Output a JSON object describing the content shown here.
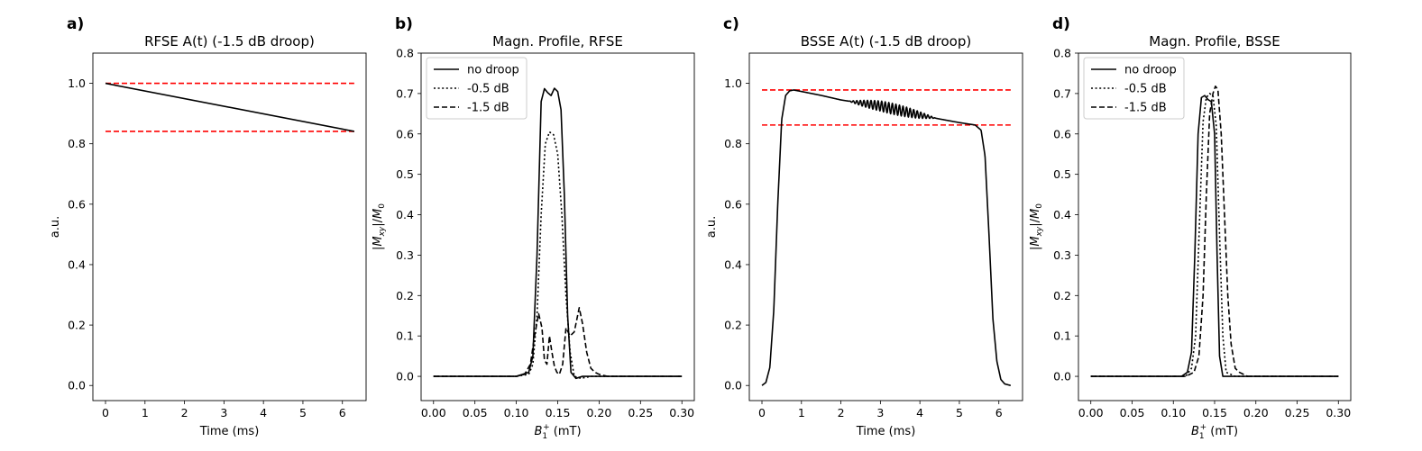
{
  "chart_data": [
    {
      "panel": "a)",
      "type": "line",
      "title": "RFSE A(t) (-1.5 dB droop)",
      "xlabel": "Time (ms)",
      "ylabel": "a.u.",
      "xlim": [
        -0.32,
        6.6
      ],
      "ylim": [
        -0.05,
        1.1
      ],
      "xticks": [
        0,
        1,
        2,
        3,
        4,
        5,
        6
      ],
      "yticks": [
        0.0,
        0.2,
        0.4,
        0.6,
        0.8,
        1.0
      ],
      "xtick_labels": [
        "0",
        "1",
        "2",
        "3",
        "4",
        "5",
        "6"
      ],
      "ytick_labels": [
        "0.0",
        "0.2",
        "0.4",
        "0.6",
        "0.8",
        "1.0"
      ],
      "series": [
        {
          "style": "solid",
          "color": "#000000",
          "x": [
            0,
            6.3
          ],
          "y": [
            1.0,
            0.841
          ]
        }
      ],
      "hlines": [
        {
          "y": 1.0,
          "x": [
            0,
            6.3
          ],
          "color": "#ff0000",
          "style": "dashed"
        },
        {
          "y": 0.841,
          "x": [
            0,
            6.3
          ],
          "color": "#ff0000",
          "style": "dashed"
        }
      ],
      "legend": null
    },
    {
      "panel": "b)",
      "type": "line",
      "title": "Magn. Profile, RFSE",
      "xlabel": "B1+ (mT)",
      "ylabel": "|Mxy|/M0",
      "xlim": [
        -0.015,
        0.315
      ],
      "ylim": [
        -0.06,
        0.8
      ],
      "xticks": [
        0.0,
        0.05,
        0.1,
        0.15,
        0.2,
        0.25,
        0.3
      ],
      "yticks": [
        0.0,
        0.1,
        0.2,
        0.3,
        0.4,
        0.5,
        0.6,
        0.7,
        0.8
      ],
      "xtick_labels": [
        "0.00",
        "0.05",
        "0.10",
        "0.15",
        "0.20",
        "0.25",
        "0.30"
      ],
      "ytick_labels": [
        "0.0",
        "0.1",
        "0.2",
        "0.3",
        "0.4",
        "0.5",
        "0.6",
        "0.7",
        "0.8"
      ],
      "series": [
        {
          "name": "no droop",
          "style": "solid",
          "x": [
            0.0,
            0.1,
            0.115,
            0.12,
            0.125,
            0.13,
            0.134,
            0.138,
            0.142,
            0.146,
            0.15,
            0.154,
            0.158,
            0.162,
            0.166,
            0.172,
            0.18,
            0.3
          ],
          "y": [
            0.0,
            0.0,
            0.01,
            0.05,
            0.3,
            0.68,
            0.712,
            0.702,
            0.695,
            0.713,
            0.705,
            0.66,
            0.45,
            0.15,
            0.01,
            -0.005,
            0.0,
            0.0
          ]
        },
        {
          "name": "-0.5 dB",
          "style": "dotted",
          "x": [
            0.0,
            0.1,
            0.115,
            0.12,
            0.125,
            0.13,
            0.135,
            0.14,
            0.145,
            0.15,
            0.155,
            0.16,
            0.165,
            0.17,
            0.178,
            0.19,
            0.3
          ],
          "y": [
            0.0,
            0.0,
            0.005,
            0.03,
            0.15,
            0.4,
            0.575,
            0.605,
            0.598,
            0.55,
            0.4,
            0.2,
            0.06,
            0.0,
            -0.005,
            0.0,
            0.0
          ]
        },
        {
          "name": "-1.5 dB",
          "style": "dashed",
          "x": [
            0.0,
            0.1,
            0.11,
            0.117,
            0.122,
            0.127,
            0.131,
            0.134,
            0.137,
            0.14,
            0.143,
            0.146,
            0.149,
            0.152,
            0.156,
            0.16,
            0.165,
            0.17,
            0.176,
            0.18,
            0.185,
            0.19,
            0.195,
            0.2,
            0.21,
            0.3
          ],
          "y": [
            0.0,
            0.0,
            0.005,
            0.03,
            0.1,
            0.155,
            0.12,
            0.04,
            0.03,
            0.1,
            0.06,
            0.025,
            0.01,
            0.005,
            0.03,
            0.12,
            0.1,
            0.11,
            0.17,
            0.13,
            0.06,
            0.02,
            0.01,
            0.005,
            0.0,
            0.0
          ]
        }
      ],
      "hlines": [],
      "legend": "upper-left"
    },
    {
      "panel": "c)",
      "type": "line",
      "title": "BSSE A(t) (-1.5 dB droop)",
      "xlabel": "Time (ms)",
      "ylabel": "a.u.",
      "xlim": [
        -0.32,
        6.6
      ],
      "ylim": [
        -0.05,
        1.1
      ],
      "xticks": [
        0,
        1,
        2,
        3,
        4,
        5,
        6
      ],
      "yticks": [
        0.0,
        0.2,
        0.4,
        0.6,
        0.8,
        1.0
      ],
      "xtick_labels": [
        "0",
        "1",
        "2",
        "3",
        "4",
        "5",
        "6"
      ],
      "ytick_labels": [
        "0.0",
        "0.2",
        "0.4",
        "0.6",
        "0.8",
        "1.0"
      ],
      "series": [
        {
          "style": "solid",
          "color": "#000000",
          "x": [
            0.0,
            0.1,
            0.2,
            0.3,
            0.4,
            0.5,
            0.6,
            0.7,
            0.8,
            1.0,
            1.5,
            2.0,
            2.5,
            3.0,
            3.5,
            4.0,
            4.5,
            5.0,
            5.4,
            5.55,
            5.65,
            5.75,
            5.85,
            5.95,
            6.05,
            6.15,
            6.3
          ],
          "y": [
            0.0,
            0.01,
            0.06,
            0.25,
            0.6,
            0.88,
            0.96,
            0.975,
            0.978,
            0.973,
            0.96,
            0.945,
            0.935,
            0.925,
            0.91,
            0.895,
            0.882,
            0.87,
            0.862,
            0.845,
            0.76,
            0.5,
            0.22,
            0.08,
            0.02,
            0.005,
            0.0
          ]
        }
      ],
      "oscillation": {
        "x_range": [
          2.2,
          4.4
        ],
        "amplitude": 0.018,
        "period": 0.09
      },
      "hlines": [
        {
          "y": 0.978,
          "x": [
            0,
            6.3
          ],
          "color": "#ff0000",
          "style": "dashed"
        },
        {
          "y": 0.862,
          "x": [
            0,
            6.3
          ],
          "color": "#ff0000",
          "style": "dashed"
        }
      ],
      "legend": null
    },
    {
      "panel": "d)",
      "type": "line",
      "title": "Magn. Profile, BSSE",
      "xlabel": "B1+ (mT)",
      "ylabel": "|Mxy|/M0",
      "xlim": [
        -0.015,
        0.315
      ],
      "ylim": [
        -0.06,
        0.8
      ],
      "xticks": [
        0.0,
        0.05,
        0.1,
        0.15,
        0.2,
        0.25,
        0.3
      ],
      "yticks": [
        0.0,
        0.1,
        0.2,
        0.3,
        0.4,
        0.5,
        0.6,
        0.7,
        0.8
      ],
      "xtick_labels": [
        "0.00",
        "0.05",
        "0.10",
        "0.15",
        "0.20",
        "0.25",
        "0.30"
      ],
      "ytick_labels": [
        "0.0",
        "0.1",
        "0.2",
        "0.3",
        "0.4",
        "0.5",
        "0.6",
        "0.7",
        "0.8"
      ],
      "series": [
        {
          "name": "no droop",
          "style": "solid",
          "x": [
            0.0,
            0.11,
            0.117,
            0.122,
            0.126,
            0.13,
            0.134,
            0.138,
            0.142,
            0.146,
            0.15,
            0.153,
            0.156,
            0.16,
            0.17,
            0.3
          ],
          "y": [
            0.0,
            0.0,
            0.01,
            0.06,
            0.3,
            0.6,
            0.69,
            0.695,
            0.685,
            0.68,
            0.6,
            0.3,
            0.05,
            0.0,
            0.0,
            0.0
          ]
        },
        {
          "name": "-0.5 dB",
          "style": "dotted",
          "x": [
            0.0,
            0.115,
            0.122,
            0.127,
            0.132,
            0.136,
            0.14,
            0.144,
            0.148,
            0.152,
            0.156,
            0.16,
            0.164,
            0.175,
            0.3
          ],
          "y": [
            0.0,
            0.0,
            0.02,
            0.1,
            0.4,
            0.63,
            0.69,
            0.7,
            0.695,
            0.62,
            0.35,
            0.1,
            0.01,
            0.0,
            0.0
          ]
        },
        {
          "name": "-1.5 dB",
          "style": "dashed",
          "x": [
            0.0,
            0.115,
            0.125,
            0.131,
            0.136,
            0.14,
            0.144,
            0.148,
            0.151,
            0.154,
            0.158,
            0.162,
            0.166,
            0.17,
            0.175,
            0.18,
            0.19,
            0.3
          ],
          "y": [
            0.0,
            0.0,
            0.01,
            0.05,
            0.2,
            0.45,
            0.65,
            0.7,
            0.718,
            0.71,
            0.6,
            0.4,
            0.2,
            0.08,
            0.02,
            0.01,
            0.0,
            0.0
          ]
        }
      ],
      "hlines": [],
      "legend": "upper-left"
    }
  ]
}
